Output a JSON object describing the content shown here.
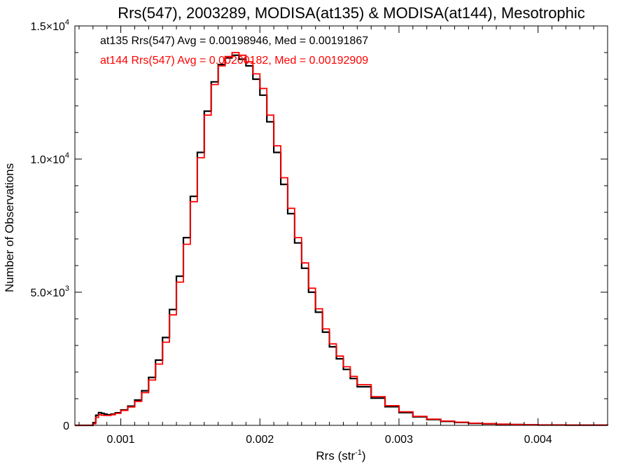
{
  "chart_data": {
    "type": "line",
    "title": "Rrs(547), 2003289, MODISA(at135) & MODISA(at144), Mesotrophic",
    "xlabel_base": "Rrs (str",
    "xlabel_sup": "-1",
    "xlabel_end": ")",
    "ylabel": "Number of Observations",
    "xlim": [
      0.00067,
      0.0045
    ],
    "ylim": [
      0,
      15000
    ],
    "x_ticks": [
      {
        "value": 0.001,
        "label": "0.001"
      },
      {
        "value": 0.002,
        "label": "0.002"
      },
      {
        "value": 0.003,
        "label": "0.003"
      },
      {
        "value": 0.004,
        "label": "0.004"
      }
    ],
    "y_ticks": [
      {
        "value": 0,
        "base": "0",
        "exp": ""
      },
      {
        "value": 5000,
        "base": "5.0×10",
        "exp": "3"
      },
      {
        "value": 10000,
        "base": "1.0×10",
        "exp": "4"
      },
      {
        "value": 15000,
        "base": "1.5×10",
        "exp": "4"
      }
    ],
    "grid": false,
    "step": true,
    "series": [
      {
        "name": "at135",
        "color": "#000000",
        "stats_text": "at135 Rrs(547) Avg = 0.00198946, Med = 0.00191867",
        "x": [
          0.00067,
          0.00075,
          0.00078,
          0.0008,
          0.00082,
          0.00084,
          0.00086,
          0.00088,
          0.0009,
          0.00093,
          0.00096,
          0.001,
          0.00105,
          0.0011,
          0.00115,
          0.0012,
          0.00125,
          0.0013,
          0.00135,
          0.0014,
          0.00145,
          0.0015,
          0.00155,
          0.0016,
          0.00165,
          0.0017,
          0.00175,
          0.0018,
          0.00185,
          0.0019,
          0.00195,
          0.002,
          0.00205,
          0.0021,
          0.00215,
          0.0022,
          0.00225,
          0.0023,
          0.00235,
          0.0024,
          0.00245,
          0.0025,
          0.00255,
          0.0026,
          0.00265,
          0.0027,
          0.0028,
          0.0029,
          0.003,
          0.0031,
          0.0032,
          0.0033,
          0.0034,
          0.0035,
          0.0036,
          0.0037,
          0.0038,
          0.0039,
          0.004,
          0.0042,
          0.0045
        ],
        "y": [
          0,
          0,
          0,
          100,
          380,
          480,
          450,
          420,
          400,
          420,
          470,
          580,
          720,
          950,
          1300,
          1800,
          2450,
          3300,
          4350,
          5600,
          7050,
          8600,
          10250,
          11800,
          12900,
          13550,
          13800,
          13900,
          13750,
          13500,
          13000,
          12400,
          11400,
          10250,
          9050,
          7950,
          6850,
          5900,
          5000,
          4250,
          3500,
          2950,
          2500,
          2100,
          1760,
          1450,
          1020,
          700,
          480,
          320,
          220,
          150,
          110,
          75,
          55,
          40,
          28,
          20,
          14,
          8,
          4
        ]
      },
      {
        "name": "at144",
        "color": "#ff0000",
        "stats_text": "at144 Rrs(547) Avg = 0.00200182, Med = 0.00192909",
        "x": [
          0.00067,
          0.00075,
          0.00078,
          0.0008,
          0.00082,
          0.00084,
          0.00086,
          0.00088,
          0.0009,
          0.00093,
          0.00096,
          0.001,
          0.00105,
          0.0011,
          0.00115,
          0.0012,
          0.00125,
          0.0013,
          0.00135,
          0.0014,
          0.00145,
          0.0015,
          0.00155,
          0.0016,
          0.00165,
          0.0017,
          0.00175,
          0.0018,
          0.00185,
          0.0019,
          0.00195,
          0.002,
          0.00205,
          0.0021,
          0.00215,
          0.0022,
          0.00225,
          0.0023,
          0.00235,
          0.0024,
          0.00245,
          0.0025,
          0.00255,
          0.0026,
          0.00265,
          0.0027,
          0.0028,
          0.0029,
          0.003,
          0.0031,
          0.0032,
          0.0033,
          0.0034,
          0.0035,
          0.0036,
          0.0037,
          0.0038,
          0.0039,
          0.004,
          0.0042,
          0.0045
        ],
        "y": [
          0,
          0,
          0,
          60,
          300,
          400,
          380,
          370,
          370,
          400,
          450,
          560,
          690,
          900,
          1230,
          1700,
          2300,
          3120,
          4150,
          5380,
          6800,
          8400,
          10050,
          11650,
          12800,
          13500,
          13850,
          14000,
          13900,
          13650,
          13200,
          12650,
          11650,
          10500,
          9300,
          8150,
          7050,
          6100,
          5150,
          4380,
          3620,
          3060,
          2600,
          2200,
          1840,
          1530,
          1080,
          740,
          510,
          340,
          235,
          160,
          118,
          82,
          60,
          44,
          31,
          22,
          16,
          9,
          5
        ]
      }
    ]
  }
}
